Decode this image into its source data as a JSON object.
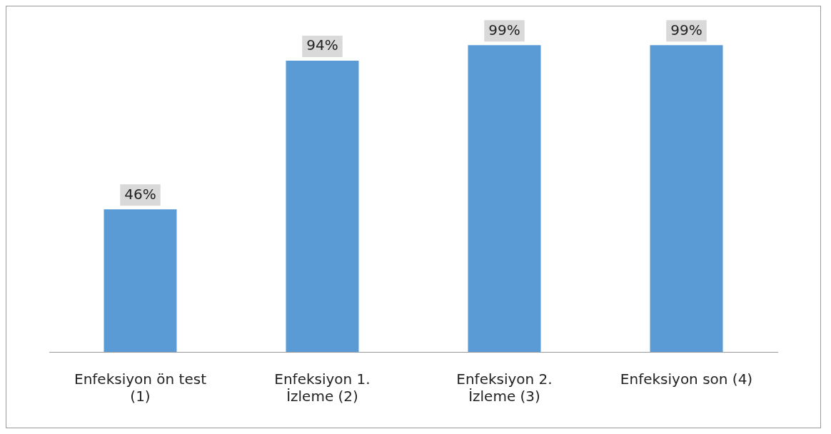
{
  "chart_data": {
    "type": "bar",
    "categories": [
      "Enfeksiyon ön test (1)",
      "Enfeksiyon 1. İzleme (2)",
      "Enfeksiyon 2. İzleme (3)",
      "Enfeksiyon son (4)"
    ],
    "values": [
      46,
      94,
      99,
      99
    ],
    "color": "#5b9bd5",
    "data_labels": true,
    "value_labels": [
      "46%",
      "94%",
      "99%",
      "99%"
    ]
  }
}
